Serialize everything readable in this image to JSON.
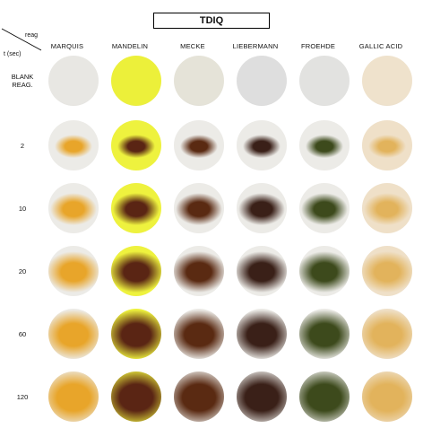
{
  "title": "TDIQ",
  "corner": {
    "reagent_label": "reag",
    "time_label": "t (sec)"
  },
  "columns": [
    {
      "label": "MARQUIS",
      "blank": "#e8e7e3",
      "spot": "#e8a52a"
    },
    {
      "label": "MANDELIN",
      "blank": "#ecf03a",
      "spot": "#5a2514"
    },
    {
      "label": "MECKE",
      "blank": "#e5e3d8",
      "spot": "#5a2a12"
    },
    {
      "label": "LIEBERMANN",
      "blank": "#dedede",
      "spot": "#3a2018"
    },
    {
      "label": "FROEHDE",
      "blank": "#e2e2e0",
      "spot": "#3d4a1c"
    },
    {
      "label": "GALLIC ACID",
      "blank": "#efe2cc",
      "spot": "#e2b35c"
    }
  ],
  "rows": [
    {
      "label": "BLANK\nREAG."
    },
    {
      "label": "2"
    },
    {
      "label": "10"
    },
    {
      "label": "20"
    },
    {
      "label": "60"
    },
    {
      "label": "120"
    }
  ]
}
